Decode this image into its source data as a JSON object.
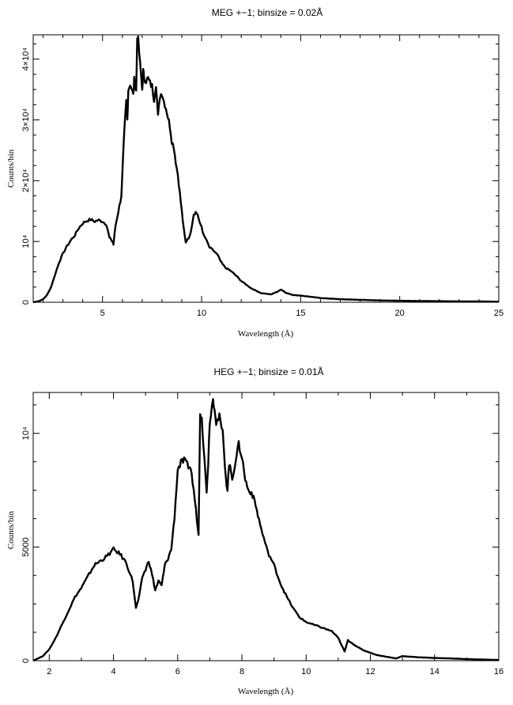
{
  "chart_data": [
    {
      "type": "line",
      "title": "MEG +−1; binsize = 0.02Å",
      "xlabel": "Wavelength (Å)",
      "ylabel": "Counts/bin",
      "xlim": [
        1.5,
        25
      ],
      "ylim": [
        0,
        44000
      ],
      "xticks": [
        5,
        10,
        15,
        20,
        25
      ],
      "xtick_labels": [
        "5",
        "10",
        "15",
        "20",
        "25"
      ],
      "yticks": [
        0,
        10000,
        20000,
        30000,
        40000
      ],
      "ytick_labels": [
        "0",
        "10⁴",
        "2×10⁴",
        "3×10⁴",
        "4×10⁴"
      ],
      "grid": false,
      "series": [
        {
          "x": [
            1.5,
            1.8,
            2.0,
            2.2,
            2.4,
            2.6,
            2.8,
            3.0,
            3.2,
            3.4,
            3.6,
            3.8,
            4.0,
            4.2,
            4.4,
            4.6,
            4.8,
            5.0,
            5.2,
            5.35,
            5.5,
            5.55,
            5.65,
            5.8,
            5.95,
            6.0,
            6.1,
            6.2,
            6.25,
            6.3,
            6.4,
            6.55,
            6.6,
            6.7,
            6.75,
            6.8,
            6.9,
            7.0,
            7.05,
            7.1,
            7.2,
            7.3,
            7.4,
            7.5,
            7.6,
            7.7,
            7.8,
            7.9,
            8.0,
            8.1,
            8.2,
            8.3,
            8.4,
            8.5,
            8.6,
            8.7,
            8.8,
            8.9,
            9.0,
            9.1,
            9.2,
            9.3,
            9.4,
            9.5,
            9.6,
            9.7,
            9.8,
            9.9,
            10.0,
            10.1,
            10.2,
            10.4,
            10.6,
            10.8,
            11.0,
            11.2,
            11.5,
            11.8,
            12.0,
            12.5,
            13.0,
            13.5,
            13.8,
            14.0,
            14.3,
            14.6,
            15.0,
            15.5,
            16.0,
            17.0,
            18.0,
            19.0,
            20.0,
            21.0,
            22.0,
            23.0,
            24.0,
            25.0
          ],
          "y": [
            0,
            200,
            500,
            1200,
            2500,
            4500,
            6500,
            8000,
            9200,
            10200,
            11000,
            12200,
            13000,
            13400,
            13600,
            13300,
            13500,
            13300,
            12800,
            10600,
            10000,
            9500,
            12500,
            15000,
            17500,
            21000,
            28000,
            33000,
            30000,
            35000,
            36000,
            34000,
            36500,
            35000,
            43500,
            43000,
            39000,
            35000,
            38000,
            37000,
            36500,
            36800,
            36000,
            35500,
            33500,
            36000,
            30500,
            34000,
            34500,
            33000,
            32000,
            30500,
            29000,
            26500,
            25500,
            23000,
            21000,
            18000,
            15000,
            12000,
            9800,
            10500,
            10800,
            12500,
            14500,
            14800,
            14500,
            13000,
            12500,
            11000,
            10500,
            9000,
            8500,
            7800,
            6500,
            5700,
            5100,
            4200,
            3500,
            2300,
            1500,
            1300,
            1700,
            2100,
            1500,
            1200,
            1100,
            900,
            700,
            500,
            400,
            300,
            250,
            200,
            180,
            150,
            130,
            100
          ]
        }
      ]
    },
    {
      "type": "line",
      "title": "HEG +−1; binsize = 0.01Å",
      "xlabel": "Wavelength (Å)",
      "ylabel": "Counts/bin",
      "xlim": [
        1.5,
        16
      ],
      "ylim": [
        0,
        11800
      ],
      "xticks": [
        2,
        4,
        6,
        8,
        10,
        12,
        14,
        16
      ],
      "xtick_labels": [
        "2",
        "4",
        "6",
        "8",
        "10",
        "12",
        "14",
        "16"
      ],
      "yticks": [
        0,
        5000,
        10000
      ],
      "ytick_labels": [
        "0",
        "5000",
        "10⁴"
      ],
      "grid": false,
      "series": [
        {
          "x": [
            1.5,
            1.8,
            2.0,
            2.2,
            2.4,
            2.6,
            2.8,
            3.0,
            3.2,
            3.4,
            3.6,
            3.8,
            4.0,
            4.2,
            4.4,
            4.6,
            4.7,
            4.8,
            4.9,
            5.0,
            5.1,
            5.2,
            5.3,
            5.4,
            5.5,
            5.6,
            5.7,
            5.8,
            5.9,
            6.0,
            6.1,
            6.2,
            6.3,
            6.4,
            6.5,
            6.6,
            6.65,
            6.7,
            6.75,
            6.8,
            6.9,
            6.95,
            7.0,
            7.1,
            7.15,
            7.2,
            7.3,
            7.4,
            7.5,
            7.55,
            7.6,
            7.7,
            7.8,
            7.9,
            8.0,
            8.1,
            8.2,
            8.3,
            8.4,
            8.5,
            8.6,
            8.8,
            9.0,
            9.2,
            9.4,
            9.6,
            9.8,
            10.0,
            10.2,
            10.4,
            10.6,
            10.8,
            11.0,
            11.2,
            11.3,
            11.4,
            11.6,
            11.8,
            12.0,
            12.2,
            12.4,
            12.6,
            12.8,
            13.0,
            13.5,
            14.0,
            14.5,
            15.0,
            15.5,
            16.0
          ],
          "y": [
            0,
            200,
            500,
            1000,
            1600,
            2200,
            2800,
            3200,
            3700,
            4200,
            4400,
            4600,
            4900,
            4700,
            4300,
            3500,
            2300,
            2800,
            3700,
            4000,
            4400,
            3800,
            3100,
            3500,
            3300,
            4200,
            4500,
            4900,
            6300,
            8400,
            8700,
            8800,
            8600,
            8500,
            7500,
            6200,
            5500,
            11000,
            10800,
            9500,
            7500,
            8700,
            10600,
            11500,
            11200,
            10500,
            10700,
            10000,
            8100,
            7500,
            8700,
            8000,
            8800,
            9500,
            9000,
            8000,
            7500,
            7400,
            7000,
            6400,
            5800,
            4800,
            4200,
            3400,
            2800,
            2300,
            1900,
            1700,
            1600,
            1500,
            1400,
            1300,
            1000,
            400,
            900,
            800,
            600,
            450,
            350,
            250,
            200,
            150,
            100,
            200,
            150,
            120,
            100,
            70,
            50,
            30
          ]
        }
      ]
    }
  ]
}
